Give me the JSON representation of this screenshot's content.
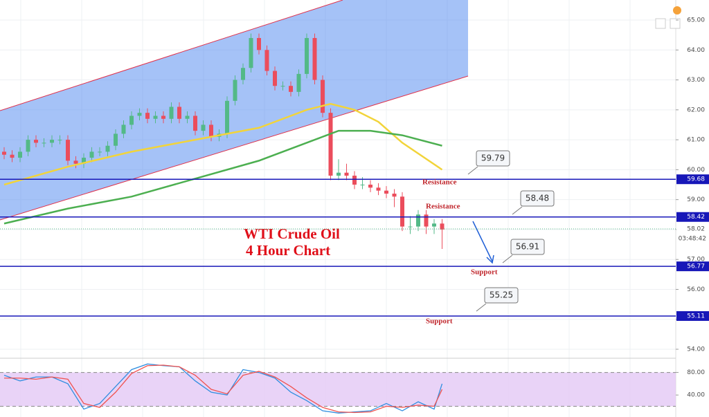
{
  "chart_data": {
    "type": "candlestick",
    "ylim": [
      53.7,
      65.67
    ],
    "yticks": [
      {
        "value": 54,
        "label": "54.00"
      },
      {
        "value": 55,
        "label": "55.00"
      },
      {
        "value": 56,
        "label": "56.00"
      },
      {
        "value": 57,
        "label": "57.00"
      },
      {
        "value": 58,
        "label": "58.00"
      },
      {
        "value": 59,
        "label": "59.00"
      },
      {
        "value": 60,
        "label": "60.00"
      },
      {
        "value": 61,
        "label": "61.00"
      },
      {
        "value": 62,
        "label": "62.00"
      },
      {
        "value": 63,
        "label": "63.00"
      },
      {
        "value": 64,
        "label": "64.00"
      },
      {
        "value": 65,
        "label": "65.00"
      }
    ],
    "grid": true,
    "up_color": "#53b987",
    "down_color": "#eb4d5c",
    "open": [
      60.6,
      60.5,
      60.4,
      60.6,
      61.0,
      60.9,
      60.9,
      61.0,
      61.0,
      60.3,
      60.2,
      60.4,
      60.6,
      60.6,
      60.8,
      61.2,
      61.5,
      61.8,
      61.9,
      61.7,
      61.8,
      61.7,
      62.1,
      61.7,
      61.8,
      61.3,
      61.5,
      61.1,
      61.2,
      62.3,
      63.0,
      63.4,
      64.4,
      64.0,
      63.3,
      62.8,
      62.8,
      62.6,
      63.2,
      64.4,
      63.0,
      61.9,
      59.8,
      59.9,
      59.8,
      59.5,
      59.5,
      59.4,
      59.3,
      59.2,
      59.1,
      58.1,
      58.1,
      58.5,
      58.1,
      58.2
    ],
    "high": [
      60.75,
      60.65,
      60.75,
      61.15,
      61.15,
      61.05,
      61.15,
      61.15,
      61.15,
      60.45,
      60.55,
      60.75,
      60.75,
      60.95,
      61.35,
      61.65,
      61.95,
      62.05,
      62.05,
      61.95,
      61.95,
      62.25,
      62.25,
      61.95,
      61.95,
      61.65,
      61.65,
      61.35,
      62.45,
      63.15,
      63.55,
      64.55,
      64.55,
      64.15,
      63.45,
      62.95,
      62.95,
      63.35,
      64.55,
      64.55,
      63.15,
      62.05,
      60.35,
      60.2,
      59.95,
      59.75,
      59.65,
      59.55,
      59.45,
      59.35,
      59.25,
      58.45,
      58.65,
      58.65,
      58.35,
      58.35
    ],
    "low": [
      60.35,
      60.25,
      60.25,
      60.45,
      60.75,
      60.75,
      60.75,
      60.85,
      60.15,
      60.05,
      60.05,
      60.25,
      60.45,
      60.45,
      60.65,
      61.05,
      61.35,
      61.65,
      61.55,
      61.55,
      61.55,
      61.55,
      61.55,
      61.55,
      61.15,
      61.15,
      60.95,
      60.95,
      61.05,
      62.15,
      62.85,
      63.25,
      63.85,
      63.15,
      62.65,
      62.65,
      62.45,
      62.45,
      63.05,
      62.85,
      61.75,
      59.65,
      59.65,
      59.65,
      59.35,
      59.35,
      59.25,
      59.15,
      59.05,
      58.75,
      57.95,
      57.85,
      57.95,
      57.85,
      57.85,
      57.35
    ],
    "close": [
      60.5,
      60.4,
      60.6,
      61.0,
      60.9,
      60.9,
      61.0,
      61.0,
      60.3,
      60.2,
      60.4,
      60.6,
      60.6,
      60.8,
      61.2,
      61.5,
      61.8,
      61.9,
      61.7,
      61.8,
      61.7,
      62.1,
      61.7,
      61.8,
      61.3,
      61.5,
      61.1,
      61.2,
      62.3,
      63.0,
      63.4,
      64.4,
      64.0,
      63.3,
      62.8,
      62.8,
      62.6,
      63.2,
      64.4,
      63.0,
      61.9,
      59.8,
      59.9,
      59.8,
      59.5,
      59.5,
      59.4,
      59.3,
      59.2,
      59.1,
      58.1,
      58.1,
      58.5,
      58.1,
      58.2,
      58.0
    ],
    "moving_averages": [
      {
        "color": "#f2d43a",
        "x": [
          0,
          8,
          16,
          24,
          32,
          38,
          41,
          44,
          47,
          50,
          55
        ],
        "values": [
          59.5,
          60.1,
          60.6,
          61.0,
          61.4,
          62.0,
          62.2,
          62.0,
          61.6,
          60.9,
          60.0
        ]
      },
      {
        "color": "#4caf50",
        "x": [
          0,
          8,
          16,
          24,
          32,
          38,
          42,
          46,
          50,
          55
        ],
        "values": [
          58.2,
          58.7,
          59.1,
          59.7,
          60.3,
          60.9,
          61.3,
          61.3,
          61.15,
          60.8
        ]
      }
    ],
    "levels": [
      59.68,
      58.42,
      56.77,
      55.11
    ],
    "level_labels": [
      "Resistance",
      "Resistance",
      "Support",
      "Support"
    ],
    "callouts": [
      59.79,
      58.48,
      56.91,
      55.25
    ],
    "last_price": 58.02,
    "countdown": "03:48:42",
    "annotations": [
      "WTI Crude Oil",
      "4 Hour Chart"
    ],
    "oscillator": {
      "ylim": [
        1,
        104
      ],
      "yticks": [
        {
          "value": 80,
          "label": "80.00"
        },
        {
          "value": 40,
          "label": "40.00"
        }
      ],
      "band": [
        20,
        80
      ],
      "x": [
        0,
        2,
        4,
        6,
        8,
        10,
        12,
        14,
        16,
        18,
        20,
        22,
        24,
        26,
        28,
        30,
        32,
        34,
        36,
        38,
        40,
        42,
        44,
        46,
        48,
        50,
        52,
        54,
        55
      ],
      "series": [
        {
          "color": "#2f8ee0",
          "values": [
            75,
            65,
            72,
            72,
            60,
            15,
            25,
            55,
            85,
            95,
            92,
            90,
            65,
            45,
            40,
            85,
            80,
            70,
            45,
            30,
            12,
            8,
            10,
            12,
            25,
            12,
            28,
            15,
            60
          ]
        },
        {
          "color": "#f0524f",
          "values": [
            70,
            70,
            68,
            72,
            68,
            25,
            18,
            45,
            78,
            92,
            93,
            90,
            75,
            50,
            42,
            75,
            82,
            72,
            55,
            35,
            18,
            10,
            9,
            10,
            20,
            18,
            22,
            20,
            50
          ]
        }
      ]
    }
  }
}
